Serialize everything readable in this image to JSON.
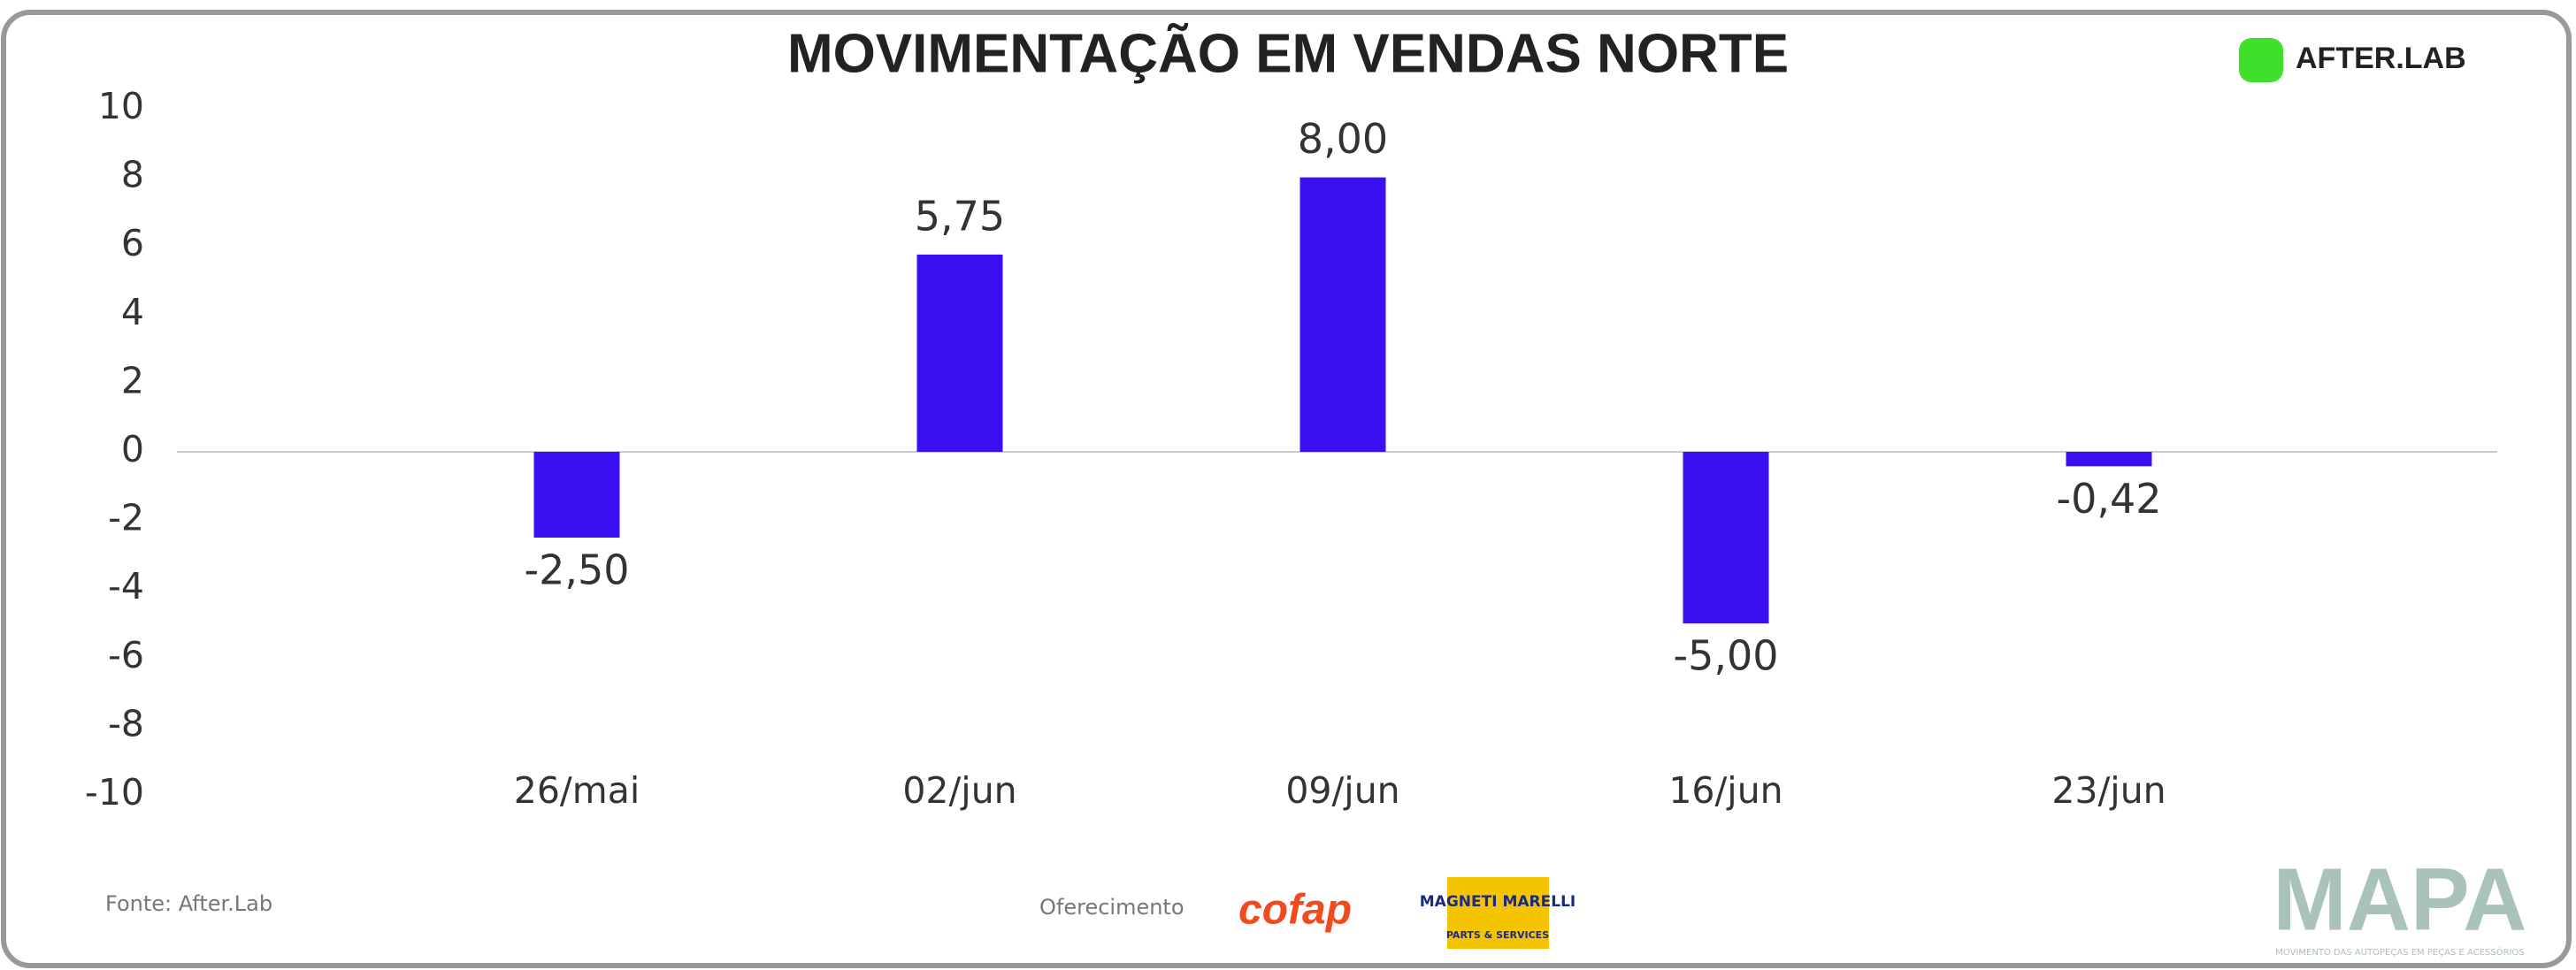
{
  "chart_data": {
    "type": "bar",
    "title": "MOVIMENTAÇÃO EM VENDAS NORTE",
    "categories": [
      "26/mai",
      "02/jun",
      "09/jun",
      "16/jun",
      "23/jun"
    ],
    "values": [
      -2.5,
      5.75,
      8.0,
      -5.0,
      -0.42
    ],
    "value_labels": [
      "-2,50",
      "5,75",
      "8,00",
      "-5,00",
      "-0,42"
    ],
    "color": "#3a0ff2",
    "ylim": [
      -10,
      10
    ],
    "yticks": [
      -10,
      -8,
      -6,
      -4,
      -2,
      0,
      2,
      4,
      6,
      8,
      10
    ],
    "grid": false,
    "source": "Fonte: After.Lab",
    "sponsor_label": "Oferecimento",
    "logos": {
      "afterlab": "AFTER.LAB",
      "cofap": "cofap",
      "magneti_top": "MAGNETI MARELLI",
      "magneti_bottom": "PARTS & SERVICES",
      "mapa": "MAPA",
      "mapa_tagline": "MOVIMENTO DAS AUTOPEÇAS EM PEÇAS E ACESSÓRIOS"
    }
  }
}
